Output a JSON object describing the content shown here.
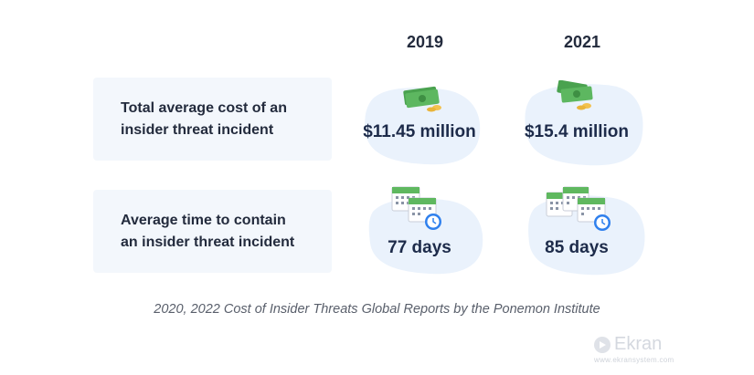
{
  "columns": [
    {
      "year": "2019",
      "cost": "$11.45 million",
      "days": "77 days"
    },
    {
      "year": "2021",
      "cost": "$15.4 million",
      "days": "85 days"
    }
  ],
  "rows": {
    "cost_label_line1": "Total average cost of an",
    "cost_label_line2": "insider threat incident",
    "time_label_line1": "Average time to contain",
    "time_label_line2": "an insider threat incident"
  },
  "source": "2020, 2022 Cost of Insider Threats Global Reports by the Ponemon Institute",
  "brand": {
    "name": "Ekran",
    "url": "www.ekransystem.com"
  },
  "icons": {
    "cost": "money-stack-icon",
    "time": "calendar-clock-icon"
  },
  "colors": {
    "blob": "#eaf2fc",
    "label_bg": "#f3f7fc",
    "money": "#5db760",
    "coin": "#f2c14e",
    "calendar_green": "#5fb85f",
    "clock_blue": "#2f80ed"
  }
}
